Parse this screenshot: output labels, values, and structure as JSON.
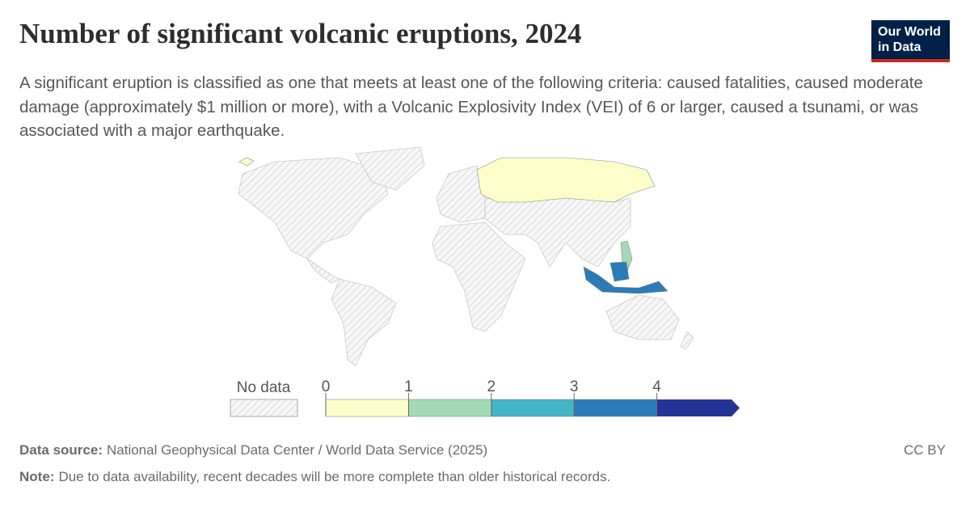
{
  "header": {
    "title": "Number of significant volcanic eruptions, 2024",
    "subtitle": "A significant eruption is classified as one that meets at least one of the following criteria: caused fatalities, caused moderate damage (approximately $1 million or more), with a Volcanic Explosivity Index (VEI) of 6 or larger, caused a tsunami, or was associated with a major earthquake."
  },
  "logo": {
    "line1": "Our World",
    "line2": "in Data"
  },
  "map": {
    "values": [
      0,
      0,
      1,
      3
    ]
  },
  "legend": {
    "no_data_label": "No data",
    "ticks": [
      0,
      1,
      2,
      3,
      4
    ],
    "colors": [
      "#fefecb",
      "#a2dab5",
      "#43b5c6",
      "#2b7bb8",
      "#253494"
    ]
  },
  "footer": {
    "source_label": "Data source:",
    "source": "National Geophysical Data Center / World Data Service (2025)",
    "note_label": "Note:",
    "note": "Due to data availability, recent decades will be more complete than older historical records.",
    "license": "CC BY"
  }
}
